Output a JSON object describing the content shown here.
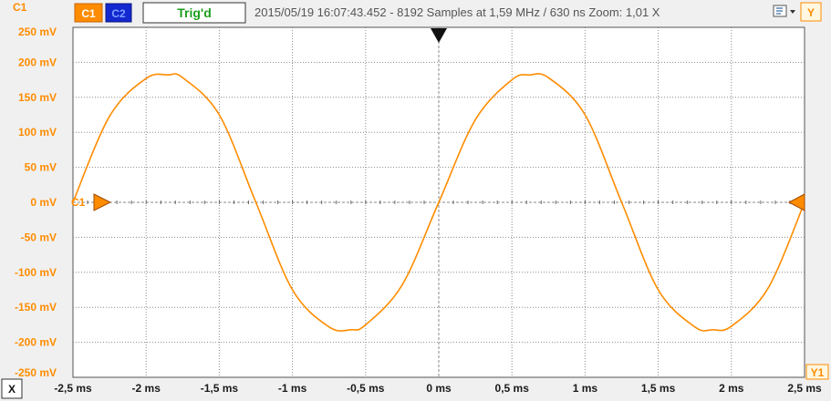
{
  "header": {
    "channel_label": "C1",
    "btn_c1": "C1",
    "btn_c2": "C2",
    "trigger_status": "Trig'd",
    "info": "2015/05/19  16:07:43.452 - 8192 Samples at 1,59 MHz / 630 ns Zoom: 1,01 X",
    "y_button": "Y",
    "x_button": "X",
    "y1_label": "Y1"
  },
  "colors": {
    "accent": "#ff8c00",
    "c1_button": "#ff8c00",
    "c2_button": "#1428d0",
    "trig_text": "#1e9e1e",
    "trace": "#ff8c00",
    "grid": "#8a8a8a",
    "plot_bg": "#ffffff",
    "panel_bg": "#f0f0f0"
  },
  "chart_data": {
    "type": "line",
    "title": "",
    "xlabel": "",
    "ylabel": "",
    "x_unit": "ms",
    "y_unit": "mV",
    "xlim": [
      -2.5,
      2.5
    ],
    "ylim": [
      -250,
      250
    ],
    "grid": true,
    "x_ticks": [
      -2.5,
      -2,
      -1.5,
      -1,
      -0.5,
      0,
      0.5,
      1,
      1.5,
      2,
      2.5
    ],
    "x_tick_labels": [
      "-2,5 ms",
      "-2 ms",
      "-1,5 ms",
      "-1 ms",
      "-0,5 ms",
      "0 ms",
      "0,5 ms",
      "1 ms",
      "1,5 ms",
      "2 ms",
      "2,5 ms"
    ],
    "y_ticks": [
      250,
      200,
      150,
      100,
      50,
      0,
      -50,
      -100,
      -150,
      -200,
      -250
    ],
    "y_tick_labels": [
      "250 mV",
      "200 mV",
      "150 mV",
      "100 mV",
      "50 mV",
      "0 mV",
      "-50 mV",
      "-100 mV",
      "-150 mV",
      "-200 mV",
      "-250 mV"
    ],
    "series": [
      {
        "name": "C1",
        "x": [
          -2.5,
          -2.25,
          -2.0,
          -1.85,
          -1.75,
          -1.5,
          -1.25,
          -1.0,
          -0.75,
          -0.6,
          -0.5,
          -0.25,
          0.0,
          0.25,
          0.5,
          0.62,
          0.75,
          1.0,
          1.25,
          1.5,
          1.75,
          1.87,
          2.0,
          2.25,
          2.5
        ],
        "y": [
          0,
          123,
          177,
          182,
          178,
          125,
          0,
          -125,
          -178,
          -182,
          -175,
          -118,
          0,
          118,
          175,
          182,
          178,
          125,
          0,
          -125,
          -178,
          -182,
          -177,
          -123,
          0
        ]
      }
    ],
    "markers": {
      "trigger_time": 0,
      "ground_level": 0,
      "ground_marker_label": "C1"
    }
  }
}
